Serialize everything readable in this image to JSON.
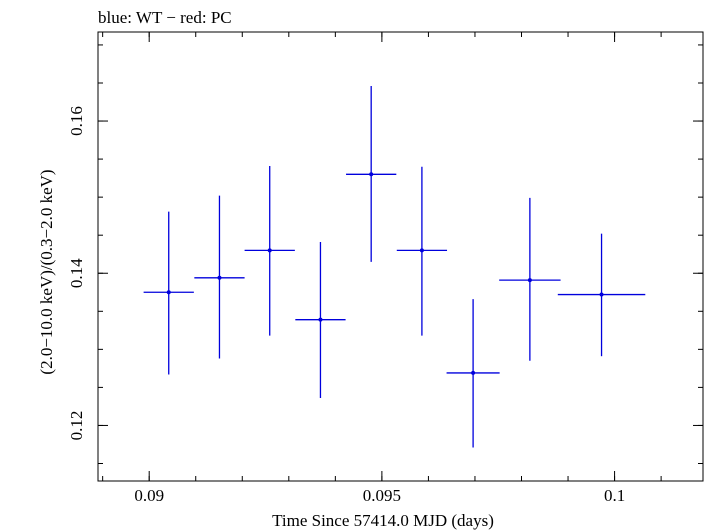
{
  "chart_data": {
    "type": "scatter",
    "title": "blue: WT − red: PC",
    "xlabel": "Time Since 57414.0 MJD (days)",
    "ylabel": "(2.0−10.0 keV)/(0.3−2.0 keV)",
    "xlim": [
      0.0889,
      0.1019
    ],
    "ylim": [
      0.1127,
      0.1717
    ],
    "x_ticks": [
      {
        "value": 0.09,
        "label": "0.09"
      },
      {
        "value": 0.095,
        "label": "0.095"
      },
      {
        "value": 0.1,
        "label": "0.1"
      }
    ],
    "y_ticks": [
      {
        "value": 0.12,
        "label": "0.12"
      },
      {
        "value": 0.14,
        "label": "0.14"
      },
      {
        "value": 0.16,
        "label": "0.16"
      }
    ],
    "x_minor_step": 0.001,
    "y_minor_step": 0.005,
    "grid": false,
    "series": [
      {
        "color": "#0000dd",
        "points": [
          {
            "x": 0.09042,
            "xerr": 0.00054,
            "y": 0.1375,
            "yerr_low": 0.0108,
            "yerr_high": 0.0106
          },
          {
            "x": 0.09151,
            "xerr": 0.00054,
            "y": 0.1394,
            "yerr_low": 0.0106,
            "yerr_high": 0.0108
          },
          {
            "x": 0.09259,
            "xerr": 0.00054,
            "y": 0.143,
            "yerr_low": 0.0112,
            "yerr_high": 0.0111
          },
          {
            "x": 0.09368,
            "xerr": 0.00054,
            "y": 0.1339,
            "yerr_low": 0.0103,
            "yerr_high": 0.0102
          },
          {
            "x": 0.09477,
            "xerr": 0.00054,
            "y": 0.153,
            "yerr_low": 0.0115,
            "yerr_high": 0.0116
          },
          {
            "x": 0.09586,
            "xerr": 0.00054,
            "y": 0.143,
            "yerr_low": 0.0112,
            "yerr_high": 0.011
          },
          {
            "x": 0.09696,
            "xerr": 0.00057,
            "y": 0.1269,
            "yerr_low": 0.0098,
            "yerr_high": 0.0097
          },
          {
            "x": 0.09818,
            "xerr": 0.00066,
            "y": 0.1391,
            "yerr_low": 0.0106,
            "yerr_high": 0.0108
          },
          {
            "x": 0.09972,
            "xerr": 0.00094,
            "y": 0.1372,
            "yerr_low": 0.0081,
            "yerr_high": 0.008
          }
        ]
      }
    ]
  }
}
